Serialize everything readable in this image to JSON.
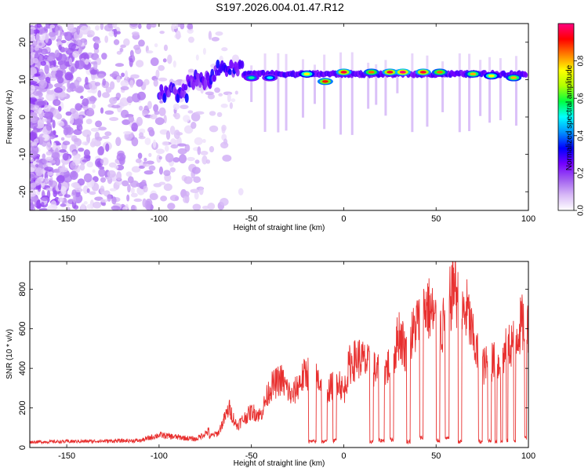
{
  "title": "S197.2026.004.01.47.R12",
  "chart_data": [
    {
      "type": "heatmap",
      "xlabel": "Height of straight line (km)",
      "ylabel": "Frequency (Hz)",
      "xlim": [
        -170,
        100
      ],
      "ylim": [
        -25,
        25
      ],
      "xticks": [
        "-150",
        "-100",
        "-50",
        "0",
        "50",
        "100"
      ],
      "yticks": [
        "-20",
        "-10",
        "0",
        "10",
        "20"
      ],
      "colorbar": {
        "label": "Normalized spectral amplitude",
        "range": [
          0,
          1
        ],
        "ticks": [
          "0.0",
          "0.2",
          "0.4",
          "0.6",
          "0.8"
        ],
        "colors": [
          "#ffffff",
          "#d7b8f6",
          "#a05cf0",
          "#7400ff",
          "#0000ff",
          "#0090ff",
          "#00ffff",
          "#00ff40",
          "#b0ff00",
          "#ffff00",
          "#ff8000",
          "#ff0000",
          "#ff0080"
        ]
      },
      "ridge": {
        "segments": [
          {
            "x": [
              -100,
              -85
            ],
            "freq": 6.5
          },
          {
            "x": [
              -85,
              -70
            ],
            "freq": 10
          },
          {
            "x": [
              -70,
              -55
            ],
            "freq": 13
          },
          {
            "x": [
              -55,
              100
            ],
            "freq": 11.5
          }
        ],
        "hotspots": [
          {
            "x": -50,
            "freq": 10.5,
            "amp": 0.55
          },
          {
            "x": -40,
            "freq": 10.5,
            "amp": 0.5
          },
          {
            "x": -20,
            "freq": 11.5,
            "amp": 0.75
          },
          {
            "x": -10,
            "freq": 9.5,
            "amp": 0.9
          },
          {
            "x": 0,
            "freq": 12,
            "amp": 0.95
          },
          {
            "x": 15,
            "freq": 12,
            "amp": 0.85
          },
          {
            "x": 25,
            "freq": 12,
            "amp": 0.95
          },
          {
            "x": 32,
            "freq": 12,
            "amp": 1.0
          },
          {
            "x": 43,
            "freq": 12,
            "amp": 0.95
          },
          {
            "x": 52,
            "freq": 12,
            "amp": 0.85
          },
          {
            "x": 70,
            "freq": 11.5,
            "amp": 0.8
          },
          {
            "x": 80,
            "freq": 11,
            "amp": 0.75
          },
          {
            "x": 92,
            "freq": 10.5,
            "amp": 0.8
          }
        ]
      },
      "colorscale": "rainbow"
    },
    {
      "type": "line",
      "xlabel": "Height of straight line (km)",
      "ylabel": "SNR (10 * v/v)",
      "xlim": [
        -170,
        100
      ],
      "ylim": [
        0,
        940
      ],
      "xticks": [
        "-150",
        "-100",
        "-50",
        "0",
        "50",
        "100"
      ],
      "yticks": [
        "0",
        "200",
        "400",
        "600",
        "800"
      ],
      "color": "#e8302f",
      "envelope": [
        {
          "x": -170,
          "y": 20
        },
        {
          "x": -110,
          "y": 25
        },
        {
          "x": -100,
          "y": 45
        },
        {
          "x": -80,
          "y": 30
        },
        {
          "x": -68,
          "y": 80
        },
        {
          "x": -62,
          "y": 220
        },
        {
          "x": -58,
          "y": 120
        },
        {
          "x": -50,
          "y": 200
        },
        {
          "x": -45,
          "y": 180
        },
        {
          "x": -40,
          "y": 330
        },
        {
          "x": -34,
          "y": 380
        },
        {
          "x": -28,
          "y": 280
        },
        {
          "x": -24,
          "y": 360
        },
        {
          "x": -20,
          "y": 420
        },
        {
          "x": -14,
          "y": 380
        },
        {
          "x": -8,
          "y": 320
        },
        {
          "x": -3,
          "y": 390
        },
        {
          "x": 0,
          "y": 300
        },
        {
          "x": 3,
          "y": 460
        },
        {
          "x": 8,
          "y": 500
        },
        {
          "x": 12,
          "y": 470
        },
        {
          "x": 17,
          "y": 430
        },
        {
          "x": 22,
          "y": 420
        },
        {
          "x": 27,
          "y": 500
        },
        {
          "x": 30,
          "y": 640
        },
        {
          "x": 34,
          "y": 520
        },
        {
          "x": 37,
          "y": 620
        },
        {
          "x": 40,
          "y": 700
        },
        {
          "x": 45,
          "y": 790
        },
        {
          "x": 50,
          "y": 700
        },
        {
          "x": 53,
          "y": 650
        },
        {
          "x": 57,
          "y": 780
        },
        {
          "x": 60,
          "y": 940
        },
        {
          "x": 63,
          "y": 720
        },
        {
          "x": 67,
          "y": 760
        },
        {
          "x": 70,
          "y": 600
        },
        {
          "x": 73,
          "y": 500
        },
        {
          "x": 76,
          "y": 450
        },
        {
          "x": 80,
          "y": 480
        },
        {
          "x": 84,
          "y": 460
        },
        {
          "x": 88,
          "y": 540
        },
        {
          "x": 92,
          "y": 600
        },
        {
          "x": 96,
          "y": 680
        },
        {
          "x": 100,
          "y": 700
        }
      ],
      "dropouts": [
        {
          "x": [
            -19,
            -15
          ],
          "y": 20
        },
        {
          "x": [
            -12,
            -9
          ],
          "y": 20
        },
        {
          "x": [
            -6,
            -4
          ],
          "y": 25
        },
        {
          "x": [
            14,
            16
          ],
          "y": 20
        },
        {
          "x": [
            19,
            22
          ],
          "y": 25
        },
        {
          "x": [
            25,
            27
          ],
          "y": 30
        },
        {
          "x": [
            34,
            36
          ],
          "y": 20
        },
        {
          "x": [
            41,
            43
          ],
          "y": 40
        },
        {
          "x": [
            50,
            52
          ],
          "y": 25
        },
        {
          "x": [
            55,
            57
          ],
          "y": 35
        },
        {
          "x": [
            62,
            64
          ],
          "y": 20
        },
        {
          "x": [
            73,
            75
          ],
          "y": 20
        },
        {
          "x": [
            78,
            80
          ],
          "y": 25
        },
        {
          "x": [
            82,
            83
          ],
          "y": 20
        },
        {
          "x": [
            85,
            86
          ],
          "y": 20
        },
        {
          "x": [
            88,
            89
          ],
          "y": 25
        },
        {
          "x": [
            92,
            93
          ],
          "y": 20
        },
        {
          "x": [
            98,
            99
          ],
          "y": 40
        }
      ]
    }
  ]
}
